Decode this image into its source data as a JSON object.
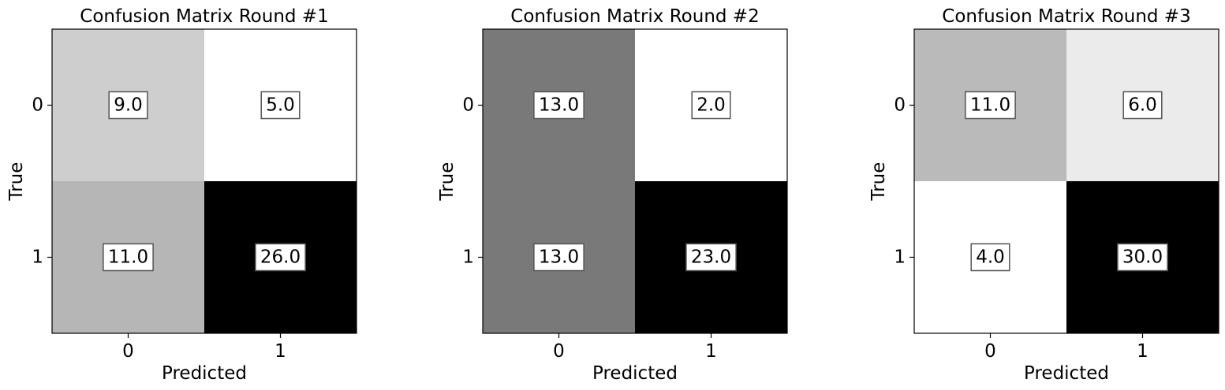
{
  "chart_data": [
    {
      "type": "heatmap",
      "title": "Confusion Matrix Round #1",
      "xlabel": "Predicted",
      "ylabel": "True",
      "x_categories": [
        "0",
        "1"
      ],
      "y_categories": [
        "0",
        "1"
      ],
      "values": [
        [
          "9.0",
          "5.0"
        ],
        [
          "11.0",
          "26.0"
        ]
      ],
      "colormap": "Greys"
    },
    {
      "type": "heatmap",
      "title": "Confusion Matrix Round #2",
      "xlabel": "Predicted",
      "ylabel": "True",
      "x_categories": [
        "0",
        "1"
      ],
      "y_categories": [
        "0",
        "1"
      ],
      "values": [
        [
          "13.0",
          "2.0"
        ],
        [
          "13.0",
          "23.0"
        ]
      ],
      "colormap": "Greys"
    },
    {
      "type": "heatmap",
      "title": "Confusion Matrix Round #3",
      "xlabel": "Predicted",
      "ylabel": "True",
      "x_categories": [
        "0",
        "1"
      ],
      "y_categories": [
        "0",
        "1"
      ],
      "values": [
        [
          "11.0",
          "6.0"
        ],
        [
          "4.0",
          "30.0"
        ]
      ],
      "colormap": "Greys"
    }
  ]
}
